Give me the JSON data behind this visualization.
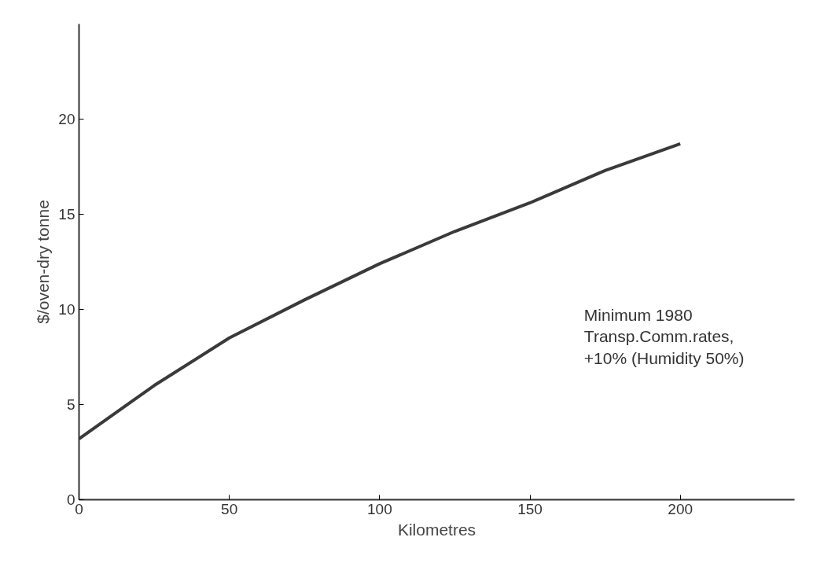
{
  "chart_data": {
    "type": "line",
    "xlabel": "Kilometres",
    "ylabel": "$/oven-dry tonne",
    "x": [
      0,
      25,
      50,
      75,
      100,
      125,
      150,
      175,
      200
    ],
    "series": [
      {
        "color": "#3a3a3a",
        "values": [
          3.2,
          6.0,
          8.5,
          10.5,
          12.4,
          14.1,
          15.6,
          17.3,
          18.7
        ]
      }
    ],
    "xlim": [
      0,
      238
    ],
    "ylim": [
      0,
      25
    ],
    "xticks": [
      0,
      50,
      100,
      150,
      200
    ],
    "yticks": [
      0,
      5,
      10,
      15,
      20
    ],
    "grid": false,
    "marker": "none",
    "line_style": "solid",
    "annotations": [
      "Minimum 1980\nTransp.Comm.rates,\n+10% (Humidity 50%)"
    ]
  }
}
